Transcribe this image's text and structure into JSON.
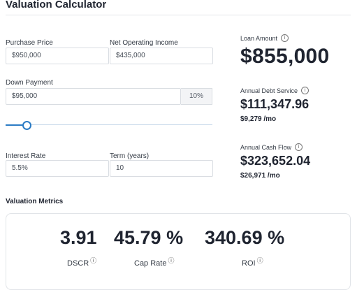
{
  "header": {
    "title": "Valuation Calculator"
  },
  "form": {
    "purchase_price": {
      "label": "Purchase Price",
      "value": "$950,000"
    },
    "noi": {
      "label": "Net Operating Income",
      "value": "$435,000"
    },
    "down_payment": {
      "label": "Down Payment",
      "value": "$95,000",
      "percent": "10%"
    },
    "slider": {
      "percent_value": 10
    },
    "interest_rate": {
      "label": "Interest Rate",
      "value": "5.5%"
    },
    "term": {
      "label": "Term (years)",
      "value": "10"
    }
  },
  "results": {
    "loan_amount": {
      "label": "Loan Amount",
      "value": "$855,000"
    },
    "annual_debt_service": {
      "label": "Annual Debt Service",
      "value": "$111,347.96",
      "monthly": "$9,279 /mo"
    },
    "annual_cash_flow": {
      "label": "Annual Cash Flow",
      "value": "$323,652.04",
      "monthly": "$26,971 /mo"
    }
  },
  "metrics": {
    "title": "Valuation Metrics",
    "items": [
      {
        "value": "3.91",
        "label": "DSCR"
      },
      {
        "value": "45.79 %",
        "label": "Cap Rate"
      },
      {
        "value": "340.69 %",
        "label": "ROI"
      }
    ],
    "info_symbol": "ⓘ"
  },
  "colors": {
    "accent": "#2b7bc4",
    "text": "#1f2430",
    "border": "#d9dde2"
  },
  "icons": {
    "info": "info-icon"
  }
}
